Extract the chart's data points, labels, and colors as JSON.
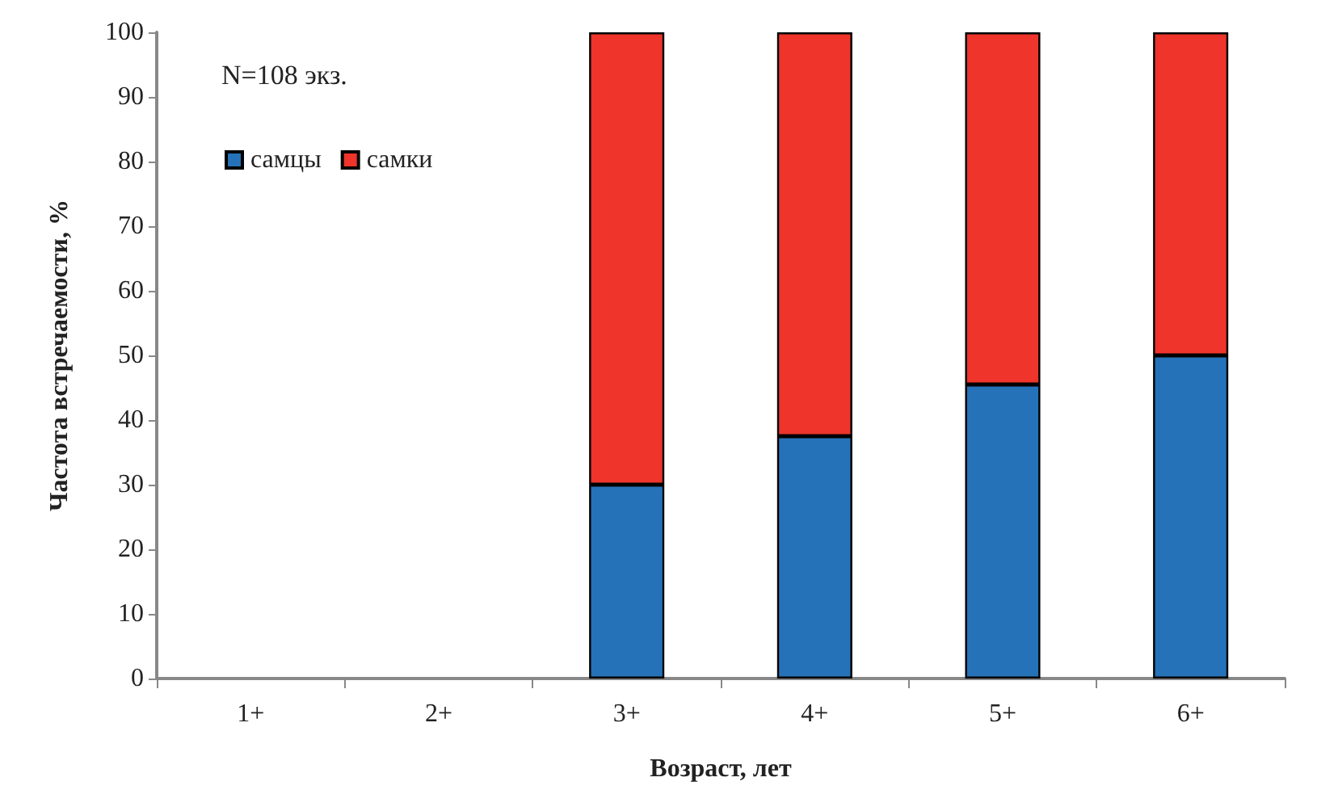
{
  "chart_data": {
    "type": "bar",
    "stacked": true,
    "xlabel": "Возраст, лет",
    "ylabel": "Частота встречаемости, %",
    "annotations": [
      "N=108 экз."
    ],
    "categories": [
      "1+",
      "2+",
      "3+",
      "4+",
      "5+",
      "6+"
    ],
    "series": [
      {
        "name": "самцы",
        "color": "#2672b8",
        "values": [
          null,
          null,
          30,
          37.5,
          45.5,
          50
        ]
      },
      {
        "name": "самки",
        "color": "#ee342b",
        "values": [
          null,
          null,
          70,
          62.5,
          54.5,
          50
        ]
      }
    ],
    "ylim": [
      0,
      100
    ],
    "yticks": [
      0,
      10,
      20,
      30,
      40,
      50,
      60,
      70,
      80,
      90,
      100
    ],
    "grid": false,
    "legend": "top left"
  }
}
